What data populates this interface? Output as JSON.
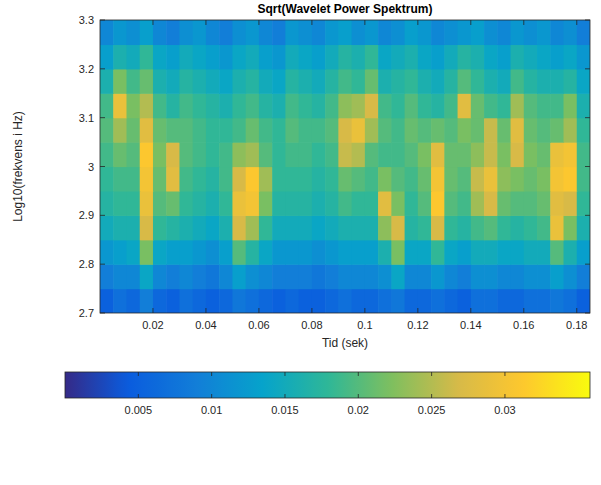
{
  "chart_data": {
    "type": "heatmap",
    "title": "Sqrt(Wavelet Power Spektrum)",
    "x_label": "Tid (sek)",
    "y_label": "Log10(frekvens i Hz)",
    "x": [
      0.0025,
      0.0075,
      0.0125,
      0.0175,
      0.0225,
      0.0275,
      0.0325,
      0.0375,
      0.0425,
      0.0475,
      0.0525,
      0.0575,
      0.0625,
      0.0675,
      0.0725,
      0.0775,
      0.0825,
      0.0875,
      0.0925,
      0.0975,
      0.1025,
      0.1075,
      0.1125,
      0.1175,
      0.1225,
      0.1275,
      0.1325,
      0.1375,
      0.1425,
      0.1475,
      0.1525,
      0.1575,
      0.1625,
      0.1675,
      0.1725,
      0.1775,
      0.1825
    ],
    "y": [
      2.725,
      2.775,
      2.825,
      2.875,
      2.925,
      2.975,
      3.025,
      3.075,
      3.125,
      3.175,
      3.225,
      3.275
    ],
    "values": [
      [
        0.005,
        0.007,
        0.006,
        0.009,
        0.006,
        0.005,
        0.007,
        0.006,
        0.005,
        0.006,
        0.008,
        0.007,
        0.006,
        0.005,
        0.006,
        0.005,
        0.005,
        0.006,
        0.007,
        0.006,
        0.006,
        0.007,
        0.008,
        0.006,
        0.006,
        0.007,
        0.006,
        0.005,
        0.007,
        0.007,
        0.006,
        0.006,
        0.007,
        0.007,
        0.008,
        0.007,
        0.005
      ],
      [
        0.009,
        0.01,
        0.01,
        0.014,
        0.01,
        0.009,
        0.01,
        0.009,
        0.008,
        0.01,
        0.013,
        0.011,
        0.01,
        0.009,
        0.009,
        0.009,
        0.008,
        0.009,
        0.01,
        0.01,
        0.01,
        0.011,
        0.014,
        0.01,
        0.01,
        0.012,
        0.01,
        0.009,
        0.011,
        0.011,
        0.01,
        0.01,
        0.011,
        0.011,
        0.013,
        0.011,
        0.009
      ],
      [
        0.012,
        0.013,
        0.014,
        0.022,
        0.014,
        0.013,
        0.013,
        0.012,
        0.011,
        0.013,
        0.02,
        0.017,
        0.014,
        0.012,
        0.012,
        0.012,
        0.011,
        0.012,
        0.013,
        0.013,
        0.013,
        0.016,
        0.022,
        0.014,
        0.014,
        0.018,
        0.014,
        0.013,
        0.015,
        0.015,
        0.014,
        0.014,
        0.015,
        0.015,
        0.02,
        0.016,
        0.013
      ],
      [
        0.015,
        0.016,
        0.016,
        0.027,
        0.018,
        0.017,
        0.016,
        0.015,
        0.014,
        0.016,
        0.027,
        0.024,
        0.018,
        0.015,
        0.015,
        0.015,
        0.014,
        0.015,
        0.016,
        0.016,
        0.016,
        0.023,
        0.027,
        0.017,
        0.018,
        0.027,
        0.018,
        0.017,
        0.019,
        0.02,
        0.018,
        0.017,
        0.018,
        0.019,
        0.029,
        0.022,
        0.016
      ],
      [
        0.017,
        0.018,
        0.018,
        0.029,
        0.02,
        0.021,
        0.018,
        0.017,
        0.016,
        0.018,
        0.029,
        0.03,
        0.022,
        0.017,
        0.017,
        0.017,
        0.016,
        0.017,
        0.019,
        0.018,
        0.018,
        0.028,
        0.022,
        0.018,
        0.02,
        0.031,
        0.02,
        0.019,
        0.024,
        0.027,
        0.021,
        0.02,
        0.02,
        0.021,
        0.028,
        0.027,
        0.018
      ],
      [
        0.018,
        0.019,
        0.019,
        0.03,
        0.021,
        0.028,
        0.019,
        0.018,
        0.017,
        0.019,
        0.027,
        0.031,
        0.024,
        0.018,
        0.018,
        0.018,
        0.017,
        0.018,
        0.021,
        0.02,
        0.019,
        0.022,
        0.02,
        0.019,
        0.021,
        0.03,
        0.021,
        0.02,
        0.026,
        0.029,
        0.023,
        0.022,
        0.021,
        0.022,
        0.03,
        0.031,
        0.019
      ],
      [
        0.019,
        0.021,
        0.02,
        0.031,
        0.022,
        0.027,
        0.02,
        0.019,
        0.018,
        0.019,
        0.023,
        0.024,
        0.02,
        0.018,
        0.019,
        0.019,
        0.018,
        0.019,
        0.026,
        0.025,
        0.02,
        0.019,
        0.019,
        0.02,
        0.022,
        0.028,
        0.021,
        0.021,
        0.023,
        0.026,
        0.022,
        0.027,
        0.022,
        0.021,
        0.029,
        0.03,
        0.019
      ],
      [
        0.02,
        0.024,
        0.021,
        0.028,
        0.021,
        0.02,
        0.02,
        0.019,
        0.018,
        0.018,
        0.019,
        0.021,
        0.019,
        0.018,
        0.02,
        0.019,
        0.019,
        0.02,
        0.027,
        0.029,
        0.024,
        0.02,
        0.019,
        0.021,
        0.02,
        0.021,
        0.02,
        0.022,
        0.021,
        0.026,
        0.021,
        0.028,
        0.021,
        0.02,
        0.021,
        0.024,
        0.018
      ],
      [
        0.019,
        0.029,
        0.022,
        0.025,
        0.019,
        0.017,
        0.019,
        0.018,
        0.017,
        0.016,
        0.018,
        0.019,
        0.017,
        0.016,
        0.019,
        0.018,
        0.017,
        0.019,
        0.023,
        0.024,
        0.027,
        0.019,
        0.018,
        0.02,
        0.018,
        0.017,
        0.019,
        0.028,
        0.021,
        0.019,
        0.018,
        0.024,
        0.02,
        0.019,
        0.019,
        0.022,
        0.016
      ],
      [
        0.016,
        0.022,
        0.019,
        0.021,
        0.016,
        0.015,
        0.017,
        0.016,
        0.015,
        0.014,
        0.016,
        0.017,
        0.015,
        0.014,
        0.017,
        0.016,
        0.015,
        0.017,
        0.019,
        0.018,
        0.021,
        0.016,
        0.017,
        0.018,
        0.016,
        0.015,
        0.017,
        0.02,
        0.018,
        0.016,
        0.015,
        0.019,
        0.017,
        0.016,
        0.016,
        0.017,
        0.014
      ],
      [
        0.013,
        0.016,
        0.015,
        0.018,
        0.014,
        0.013,
        0.015,
        0.014,
        0.013,
        0.012,
        0.014,
        0.015,
        0.013,
        0.012,
        0.015,
        0.014,
        0.013,
        0.015,
        0.017,
        0.016,
        0.018,
        0.014,
        0.015,
        0.016,
        0.014,
        0.013,
        0.015,
        0.017,
        0.016,
        0.014,
        0.013,
        0.016,
        0.015,
        0.014,
        0.013,
        0.014,
        0.012
      ],
      [
        0.01,
        0.012,
        0.011,
        0.013,
        0.01,
        0.009,
        0.011,
        0.012,
        0.01,
        0.009,
        0.011,
        0.012,
        0.01,
        0.009,
        0.012,
        0.011,
        0.01,
        0.012,
        0.013,
        0.011,
        0.012,
        0.01,
        0.011,
        0.013,
        0.012,
        0.01,
        0.011,
        0.012,
        0.013,
        0.011,
        0.01,
        0.012,
        0.011,
        0.012,
        0.01,
        0.011,
        0.009
      ]
    ],
    "xlim": [
      0,
      0.185
    ],
    "ylim": [
      2.7,
      3.3
    ],
    "xticks": [
      0.02,
      0.04,
      0.06,
      0.08,
      0.1,
      0.12,
      0.14,
      0.16,
      0.18
    ],
    "yticks": [
      2.7,
      2.8,
      2.9,
      3,
      3.1,
      3.2,
      3.3
    ],
    "colorbar": {
      "lim": [
        0,
        0.0358
      ],
      "ticks": [
        0.005,
        0.01,
        0.015,
        0.02,
        0.025,
        0.03
      ]
    }
  }
}
